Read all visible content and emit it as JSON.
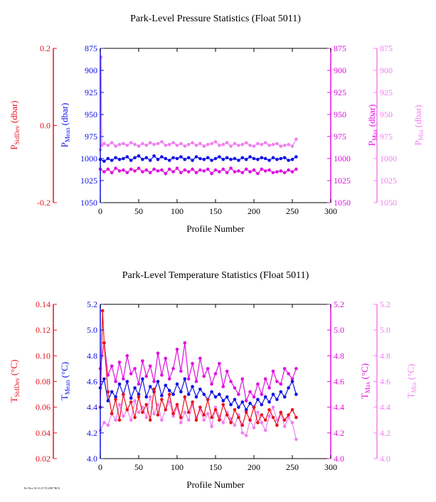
{
  "footer_stamp": "Fri Nov 16 11:27:53 2007 RCS",
  "colors": {
    "stddev": "#e8121e",
    "mean": "#1010e8",
    "max": "#e010e0",
    "min": "#f080f0",
    "frame": "#000000"
  },
  "chart_data": [
    {
      "type": "line",
      "title": "Park-Level Pressure Statistics (Float 5011)",
      "xlabel": "Profile Number",
      "xlim": [
        0,
        300
      ],
      "xticks": [
        "0",
        "50",
        "100",
        "150",
        "200",
        "250",
        "300"
      ],
      "axes": {
        "stddev": {
          "label_main": "P",
          "label_sub": "StdDev",
          "label_unit": " (dbar)",
          "ylim": [
            -0.2,
            0.2
          ],
          "ticks": [
            "0.2",
            "0.0",
            "-0.2"
          ]
        },
        "mean": {
          "label_main": "P",
          "label_sub": "Mean",
          "label_unit": " (dbar)",
          "ylim": [
            875,
            1050
          ],
          "inverted": true,
          "ticks": [
            "875",
            "900",
            "925",
            "950",
            "975",
            "1000",
            "1025",
            "1050"
          ]
        },
        "max": {
          "label_main": "P",
          "label_sub": "Max",
          "label_unit": " (dbar)",
          "ylim": [
            875,
            1050
          ],
          "inverted": true,
          "ticks": [
            "875",
            "900",
            "925",
            "950",
            "975",
            "1000",
            "1025",
            "1050"
          ]
        },
        "min": {
          "label_main": "P",
          "label_sub": "Min",
          "label_unit": " (dbar)",
          "ylim": [
            875,
            1050
          ],
          "inverted": true,
          "ticks": [
            "875",
            "900",
            "925",
            "950",
            "975",
            "1000",
            "1025",
            "1050"
          ]
        }
      },
      "series": [
        {
          "key": "max",
          "x": [
            0,
            5,
            10,
            15,
            20,
            25,
            30,
            35,
            40,
            45,
            50,
            55,
            60,
            65,
            70,
            75,
            80,
            85,
            90,
            95,
            100,
            105,
            110,
            115,
            120,
            125,
            130,
            135,
            140,
            145,
            150,
            155,
            160,
            165,
            170,
            175,
            180,
            185,
            190,
            195,
            200,
            205,
            210,
            215,
            220,
            225,
            230,
            235,
            240,
            245,
            250,
            255
          ],
          "values": [
            1012,
            1015,
            1012,
            1016,
            1011,
            1014,
            1013,
            1016,
            1012,
            1014,
            1011,
            1015,
            1013,
            1016,
            1012,
            1014,
            1013,
            1017,
            1012,
            1015,
            1011,
            1016,
            1013,
            1015,
            1012,
            1016,
            1013,
            1014,
            1012,
            1017,
            1013,
            1015,
            1012,
            1016,
            1011,
            1015,
            1014,
            1016,
            1012,
            1015,
            1013,
            1017,
            1012,
            1014,
            1013,
            1016,
            1015,
            1014,
            1016,
            1013,
            1015,
            1012
          ]
        },
        {
          "key": "min",
          "x": [
            0,
            1,
            2,
            5,
            10,
            15,
            20,
            25,
            30,
            35,
            40,
            45,
            50,
            55,
            60,
            65,
            70,
            75,
            80,
            85,
            90,
            95,
            100,
            105,
            110,
            115,
            120,
            125,
            130,
            135,
            140,
            145,
            150,
            155,
            160,
            165,
            170,
            175,
            180,
            185,
            190,
            195,
            200,
            205,
            210,
            215,
            220,
            225,
            230,
            235,
            240,
            245,
            250,
            255
          ],
          "values": [
            990,
            885,
            985,
            983,
            985,
            982,
            986,
            984,
            983,
            985,
            982,
            984,
            986,
            983,
            985,
            982,
            984,
            983,
            981,
            985,
            984,
            982,
            985,
            983,
            986,
            984,
            982,
            985,
            983,
            986,
            984,
            983,
            981,
            985,
            984,
            982,
            986,
            983,
            985,
            984,
            982,
            985,
            986,
            983,
            984,
            982,
            985,
            984,
            983,
            986,
            985,
            984,
            986,
            978
          ]
        },
        {
          "key": "mean",
          "x": [
            0,
            5,
            10,
            15,
            20,
            25,
            30,
            35,
            40,
            45,
            50,
            55,
            60,
            65,
            70,
            75,
            80,
            85,
            90,
            95,
            100,
            105,
            110,
            115,
            120,
            125,
            130,
            135,
            140,
            145,
            150,
            155,
            160,
            165,
            170,
            175,
            180,
            185,
            190,
            195,
            200,
            205,
            210,
            215,
            220,
            225,
            230,
            235,
            240,
            245,
            250,
            255
          ],
          "values": [
            1001,
            1003,
            1000,
            1002,
            999,
            1001,
            1000,
            998,
            1002,
            999,
            997,
            1001,
            999,
            1002,
            997,
            1001,
            998,
            1000,
            1002,
            999,
            1000,
            998,
            1001,
            999,
            1002,
            998,
            1000,
            1001,
            999,
            1002,
            1000,
            998,
            1001,
            999,
            1001,
            1000,
            1002,
            999,
            1001,
            998,
            1000,
            1001,
            999,
            1000,
            1002,
            999,
            1001,
            1000,
            999,
            1002,
            1001,
            998
          ]
        },
        {
          "key": "stddev",
          "x": [],
          "values": []
        }
      ]
    },
    {
      "type": "line",
      "title": "Park-Level Temperature Statistics (Float 5011)",
      "xlabel": "Profile Number",
      "xlim": [
        0,
        300
      ],
      "xticks": [
        "0",
        "50",
        "100",
        "150",
        "200",
        "250",
        "300"
      ],
      "axes": {
        "stddev": {
          "label_main": "T",
          "label_sub": "StdDev",
          "label_unit": " (°C)",
          "ylim": [
            0.02,
            0.14
          ],
          "ticks": [
            "0.14",
            "0.12",
            "0.10",
            "0.08",
            "0.06",
            "0.04",
            "0.02"
          ]
        },
        "mean": {
          "label_main": "T",
          "label_sub": "Mean",
          "label_unit": " (°C)",
          "ylim": [
            4.0,
            5.2
          ],
          "ticks": [
            "5.2",
            "5.0",
            "4.8",
            "4.6",
            "4.4",
            "4.2",
            "4.0"
          ]
        },
        "max": {
          "label_main": "T",
          "label_sub": "Max",
          "label_unit": " (°C)",
          "ylim": [
            4.0,
            5.2
          ],
          "ticks": [
            "5.2",
            "5.0",
            "4.8",
            "4.6",
            "4.4",
            "4.2",
            "4.0"
          ]
        },
        "min": {
          "label_main": "T",
          "label_sub": "Min",
          "label_unit": " (°C)",
          "ylim": [
            4.0,
            5.2
          ],
          "ticks": [
            "5.2",
            "5.0",
            "4.8",
            "4.6",
            "4.4",
            "4.2",
            "4.0"
          ]
        }
      },
      "series": [
        {
          "key": "min",
          "x": [
            0,
            5,
            10,
            15,
            20,
            25,
            30,
            35,
            40,
            45,
            50,
            55,
            60,
            65,
            70,
            75,
            80,
            85,
            90,
            95,
            100,
            105,
            110,
            115,
            120,
            125,
            130,
            135,
            140,
            145,
            150,
            155,
            160,
            165,
            170,
            175,
            180,
            185,
            190,
            195,
            200,
            205,
            210,
            215,
            220,
            225,
            230,
            235,
            240,
            245,
            250,
            255
          ],
          "values": [
            4.22,
            4.28,
            4.26,
            4.35,
            4.3,
            4.42,
            4.33,
            4.38,
            4.3,
            4.45,
            4.36,
            4.4,
            4.32,
            4.48,
            4.35,
            4.42,
            4.3,
            4.38,
            4.44,
            4.33,
            4.4,
            4.28,
            4.36,
            4.3,
            4.42,
            4.32,
            4.38,
            4.3,
            4.35,
            4.25,
            4.4,
            4.33,
            4.28,
            4.36,
            4.31,
            4.26,
            4.34,
            4.2,
            4.18,
            4.3,
            4.24,
            4.36,
            4.28,
            4.22,
            4.33,
            4.4,
            4.3,
            4.35,
            4.25,
            4.32,
            4.28,
            4.15
          ]
        },
        {
          "key": "max",
          "x": [
            0,
            5,
            10,
            15,
            20,
            25,
            30,
            35,
            40,
            45,
            50,
            55,
            60,
            65,
            70,
            75,
            80,
            85,
            90,
            95,
            100,
            105,
            110,
            115,
            120,
            125,
            130,
            135,
            140,
            145,
            150,
            155,
            160,
            165,
            170,
            175,
            180,
            185,
            190,
            195,
            200,
            205,
            210,
            215,
            220,
            225,
            230,
            235,
            240,
            245,
            250,
            255
          ],
          "values": [
            4.7,
            4.9,
            4.65,
            4.72,
            4.6,
            4.75,
            4.62,
            4.8,
            4.66,
            4.7,
            4.58,
            4.76,
            4.64,
            4.72,
            4.6,
            4.82,
            4.65,
            4.78,
            4.62,
            4.7,
            4.85,
            4.68,
            4.9,
            4.62,
            4.74,
            4.6,
            4.78,
            4.64,
            4.7,
            4.58,
            4.66,
            4.74,
            4.56,
            4.68,
            4.6,
            4.55,
            4.5,
            4.62,
            4.45,
            4.52,
            4.48,
            4.58,
            4.5,
            4.62,
            4.55,
            4.68,
            4.6,
            4.58,
            4.7,
            4.66,
            4.62,
            4.7
          ]
        },
        {
          "key": "mean",
          "x": [
            0,
            5,
            10,
            15,
            20,
            25,
            30,
            35,
            40,
            45,
            50,
            55,
            60,
            65,
            70,
            75,
            80,
            85,
            90,
            95,
            100,
            105,
            110,
            115,
            120,
            125,
            130,
            135,
            140,
            145,
            150,
            155,
            160,
            165,
            170,
            175,
            180,
            185,
            190,
            195,
            200,
            205,
            210,
            215,
            220,
            225,
            230,
            235,
            240,
            245,
            250,
            255
          ],
          "values": [
            4.55,
            4.62,
            4.45,
            4.52,
            4.48,
            4.58,
            4.5,
            4.6,
            4.47,
            4.55,
            4.5,
            4.62,
            4.48,
            4.56,
            4.52,
            4.6,
            4.49,
            4.57,
            4.53,
            4.5,
            4.58,
            4.52,
            4.62,
            4.5,
            4.56,
            4.48,
            4.54,
            4.5,
            4.46,
            4.52,
            4.48,
            4.5,
            4.45,
            4.48,
            4.42,
            4.46,
            4.4,
            4.44,
            4.38,
            4.43,
            4.4,
            4.46,
            4.42,
            4.48,
            4.44,
            4.5,
            4.46,
            4.52,
            4.48,
            4.55,
            4.6,
            4.5
          ]
        },
        {
          "key": "stddev",
          "x": [
            0,
            3,
            5,
            10,
            15,
            20,
            25,
            30,
            35,
            40,
            45,
            50,
            55,
            60,
            65,
            70,
            75,
            80,
            85,
            90,
            95,
            100,
            105,
            110,
            115,
            120,
            125,
            130,
            135,
            140,
            145,
            150,
            155,
            160,
            165,
            170,
            175,
            180,
            185,
            190,
            195,
            200,
            205,
            210,
            215,
            220,
            225,
            230,
            235,
            240,
            245,
            250,
            255
          ],
          "values": [
            0.06,
            0.135,
            0.11,
            0.072,
            0.055,
            0.066,
            0.05,
            0.07,
            0.058,
            0.064,
            0.052,
            0.068,
            0.056,
            0.062,
            0.05,
            0.074,
            0.054,
            0.066,
            0.058,
            0.07,
            0.055,
            0.062,
            0.052,
            0.068,
            0.056,
            0.064,
            0.05,
            0.06,
            0.054,
            0.066,
            0.052,
            0.058,
            0.05,
            0.062,
            0.054,
            0.048,
            0.058,
            0.052,
            0.046,
            0.056,
            0.05,
            0.06,
            0.048,
            0.054,
            0.05,
            0.058,
            0.052,
            0.046,
            0.056,
            0.05,
            0.054,
            0.058,
            0.052
          ]
        }
      ]
    }
  ]
}
